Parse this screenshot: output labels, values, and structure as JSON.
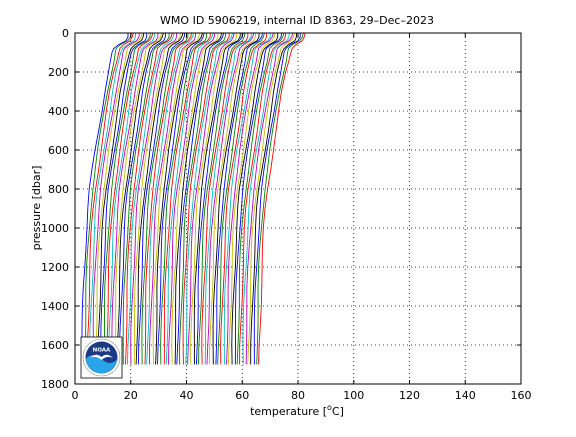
{
  "chart_data": {
    "type": "line",
    "title": "WMO ID 5906219, internal ID 8363, 29–Dec–2023",
    "xlabel_prefix": "temperature [",
    "xlabel_unit_sup": "o",
    "xlabel_suffix": "C]",
    "ylabel": "pressure [dbar]",
    "xlim": [
      0,
      160
    ],
    "ylim": [
      0,
      1800
    ],
    "y_reversed": true,
    "grid": true,
    "grid_style": "dotted",
    "xticks": [
      0,
      20,
      40,
      60,
      80,
      100,
      120,
      140,
      160
    ],
    "yticks": [
      0,
      200,
      400,
      600,
      800,
      1000,
      1200,
      1400,
      1600,
      1800
    ],
    "profile_offset_step": 0.98,
    "profile_count": 66,
    "series_colors": [
      "#0000ff",
      "#008000",
      "#ff0000",
      "#00bfbf",
      "#bf00bf",
      "#bfbf00",
      "#000000"
    ],
    "base_profile": {
      "pressure": [
        0,
        20,
        40,
        60,
        80,
        100,
        150,
        200,
        300,
        400,
        500,
        600,
        700,
        800,
        900,
        1000,
        1100,
        1200,
        1300,
        1400,
        1500,
        1600,
        1700
      ],
      "temperature": [
        19.0,
        18.8,
        18.0,
        15.5,
        14.0,
        13.5,
        12.8,
        12.0,
        10.6,
        9.5,
        8.4,
        7.3,
        6.3,
        5.3,
        4.6,
        4.1,
        3.7,
        3.4,
        3.1,
        2.9,
        2.7,
        2.5,
        2.4
      ]
    }
  },
  "logo": {
    "text": "NOAA",
    "colors": {
      "ring": "#ffffff",
      "navy": "#1c3a87",
      "sky": "#2aa4e8",
      "gull": "#ffffff"
    }
  }
}
